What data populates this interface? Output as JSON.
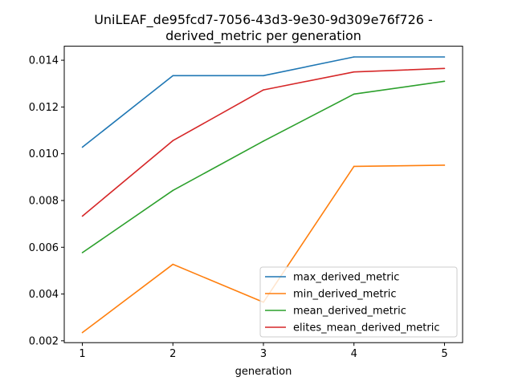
{
  "chart_data": {
    "type": "line",
    "title_line1": "UniLEAF_de95fcd7-7056-43d3-9e30-9d309e76f726 -",
    "title_line2": "derived_metric per generation",
    "xlabel": "generation",
    "ylabel": "",
    "x": [
      1,
      2,
      3,
      4,
      5
    ],
    "xlim": [
      0.8,
      5.2
    ],
    "ylim": [
      0.00192,
      0.0146
    ],
    "xticks": [
      1,
      2,
      3,
      4,
      5
    ],
    "yticks": [
      0.002,
      0.004,
      0.006,
      0.008,
      0.01,
      0.012,
      0.014
    ],
    "ytick_labels": [
      "0.002",
      "0.004",
      "0.006",
      "0.008",
      "0.010",
      "0.012",
      "0.014"
    ],
    "grid": false,
    "legend_position": "lower-right",
    "series": [
      {
        "name": "max_derived_metric",
        "color": "#1f77b4",
        "values": [
          0.01028,
          0.01334,
          0.01334,
          0.01414,
          0.01414
        ]
      },
      {
        "name": "min_derived_metric",
        "color": "#ff7f0e",
        "values": [
          0.00235,
          0.00527,
          0.00365,
          0.00946,
          0.00951
        ]
      },
      {
        "name": "mean_derived_metric",
        "color": "#2ca02c",
        "values": [
          0.00577,
          0.00843,
          0.01054,
          0.01255,
          0.0131
        ]
      },
      {
        "name": "elites_mean_derived_metric",
        "color": "#d62728",
        "values": [
          0.00733,
          0.01056,
          0.01273,
          0.0135,
          0.01365
        ]
      }
    ]
  }
}
